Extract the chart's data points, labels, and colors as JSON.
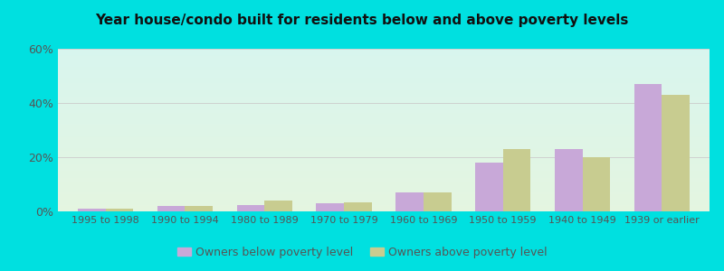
{
  "title": "Year house/condo built for residents below and above poverty levels",
  "categories": [
    "1995 to 1998",
    "1990 to 1994",
    "1980 to 1989",
    "1970 to 1979",
    "1960 to 1969",
    "1950 to 1959",
    "1940 to 1949",
    "1939 or earlier"
  ],
  "below_poverty": [
    1.0,
    2.0,
    2.5,
    3.0,
    7.0,
    18.0,
    23.0,
    47.0
  ],
  "above_poverty": [
    1.0,
    2.0,
    4.0,
    3.5,
    7.0,
    23.0,
    20.0,
    43.0
  ],
  "below_color": "#c8a8d8",
  "above_color": "#c8cc90",
  "ylim": [
    0,
    60
  ],
  "yticks": [
    0,
    20,
    40,
    60
  ],
  "ytick_labels": [
    "0%",
    "20%",
    "40%",
    "60%"
  ],
  "grad_top": "#d8f5ee",
  "grad_bottom": "#e4f5e0",
  "bar_width": 0.35,
  "legend_below": "Owners below poverty level",
  "legend_above": "Owners above poverty level",
  "outer_bg": "#00e0e0",
  "title_color": "#111111",
  "tick_color": "#555555",
  "grid_color": "#cccccc"
}
